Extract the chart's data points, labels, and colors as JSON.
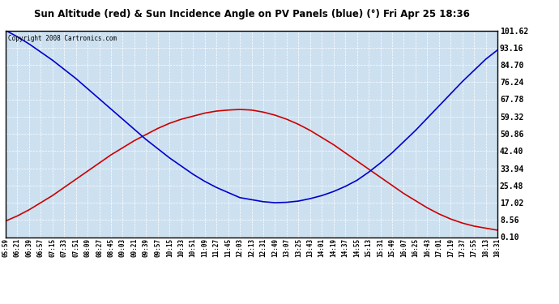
{
  "title": "Sun Altitude (red) & Sun Incidence Angle on PV Panels (blue) (°) Fri Apr 25 18:36",
  "copyright": "Copyright 2008 Cartronics.com",
  "yticks": [
    0.1,
    8.56,
    17.02,
    25.48,
    33.94,
    42.4,
    50.86,
    59.32,
    67.78,
    76.24,
    84.7,
    93.16,
    101.62
  ],
  "ymin": 0.1,
  "ymax": 101.62,
  "x_labels": [
    "05:59",
    "06:21",
    "06:39",
    "06:57",
    "07:15",
    "07:33",
    "07:51",
    "08:09",
    "08:27",
    "08:45",
    "09:03",
    "09:21",
    "09:39",
    "09:57",
    "10:15",
    "10:33",
    "10:51",
    "11:09",
    "11:27",
    "11:45",
    "12:03",
    "12:13",
    "12:31",
    "12:49",
    "13:07",
    "13:25",
    "13:43",
    "14:01",
    "14:19",
    "14:37",
    "14:55",
    "15:13",
    "15:31",
    "15:49",
    "16:07",
    "16:25",
    "16:43",
    "17:01",
    "17:19",
    "17:37",
    "17:55",
    "18:13",
    "18:31"
  ],
  "bg_color": "#ffffff",
  "plot_bg_color": "#cce0f0",
  "grid_color": "#ffffff",
  "red_line_color": "#cc0000",
  "blue_line_color": "#0000cc",
  "border_color": "#000000",
  "red_data": [
    8.0,
    10.5,
    13.5,
    17.0,
    20.5,
    24.5,
    28.5,
    32.5,
    36.5,
    40.5,
    44.0,
    47.5,
    50.5,
    53.5,
    56.0,
    58.0,
    59.5,
    61.0,
    62.0,
    62.5,
    62.8,
    62.5,
    61.5,
    60.0,
    58.0,
    55.5,
    52.5,
    49.0,
    45.5,
    41.5,
    37.5,
    33.5,
    29.5,
    25.5,
    21.5,
    18.0,
    14.5,
    11.5,
    9.0,
    7.0,
    5.5,
    4.5,
    3.5
  ],
  "blue_data": [
    101.62,
    98.5,
    95.0,
    91.0,
    87.0,
    82.5,
    78.0,
    73.0,
    68.0,
    63.0,
    58.0,
    53.0,
    48.0,
    43.5,
    39.0,
    35.0,
    31.0,
    27.5,
    24.5,
    22.0,
    19.5,
    18.5,
    17.5,
    17.0,
    17.2,
    17.8,
    19.0,
    20.5,
    22.5,
    25.0,
    28.0,
    32.0,
    36.5,
    41.5,
    47.0,
    52.5,
    58.5,
    64.5,
    70.5,
    76.5,
    82.0,
    87.5,
    92.0
  ]
}
